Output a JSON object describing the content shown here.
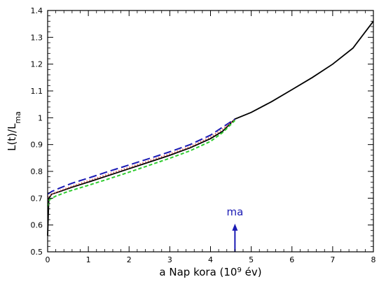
{
  "chart_data": {
    "type": "line",
    "xlabel": {
      "main": "a Nap kora (10",
      "sup": "9",
      "tail": " év)"
    },
    "ylabel": {
      "main": "L(t)/L",
      "sub": "ma"
    },
    "xlim": [
      0,
      8
    ],
    "ylim": [
      0.5,
      1.4
    ],
    "xticks": [
      0,
      1,
      2,
      3,
      4,
      5,
      6,
      7,
      8
    ],
    "yticks": [
      0.5,
      0.6,
      0.7,
      0.8,
      0.9,
      1.0,
      1.1,
      1.2,
      1.3,
      1.4
    ],
    "xtick_labels": [
      "0",
      "1",
      "2",
      "3",
      "4",
      "5",
      "6",
      "7",
      "8"
    ],
    "ytick_labels": [
      "0.5",
      "0.6",
      "0.7",
      "0.8",
      "0.9",
      "1",
      "1.1",
      "1.2",
      "1.3",
      "1.4"
    ],
    "grid": false,
    "series": [
      {
        "color": "#000000",
        "dash": "solid",
        "x": [
          0,
          0.03,
          0.1,
          0.3,
          0.6,
          1.0,
          1.5,
          2.0,
          2.5,
          3.0,
          3.5,
          4.0,
          4.3,
          4.6,
          5.0,
          5.5,
          6.0,
          6.5,
          7.0,
          7.5,
          8.0
        ],
        "y": [
          0.56,
          0.7,
          0.715,
          0.725,
          0.741,
          0.76,
          0.785,
          0.81,
          0.835,
          0.86,
          0.888,
          0.922,
          0.95,
          0.995,
          1.02,
          1.06,
          1.105,
          1.15,
          1.2,
          1.26,
          1.36
        ]
      },
      {
        "color": "#1a1ab4",
        "dash": "long-dash",
        "x": [
          0,
          0.1,
          0.3,
          0.6,
          1.0,
          1.5,
          2.0,
          2.5,
          3.0,
          3.5,
          4.0,
          4.3,
          4.6
        ],
        "y": [
          0.715,
          0.725,
          0.738,
          0.756,
          0.775,
          0.8,
          0.824,
          0.848,
          0.873,
          0.9,
          0.935,
          0.965,
          0.995
        ]
      },
      {
        "color": "#e06060",
        "dash": "dotted",
        "x": [
          0,
          0.1,
          0.3,
          0.6,
          1.0,
          1.5,
          2.0,
          2.5,
          3.0,
          3.5,
          4.0,
          4.3,
          4.6
        ],
        "y": [
          0.705,
          0.715,
          0.728,
          0.745,
          0.765,
          0.79,
          0.815,
          0.84,
          0.865,
          0.892,
          0.928,
          0.958,
          0.993
        ]
      },
      {
        "color": "#2ecc2e",
        "dash": "short-dash",
        "x": [
          0,
          0.05,
          0.2,
          0.5,
          1.0,
          1.5,
          2.0,
          2.5,
          3.0,
          3.5,
          4.0,
          4.3,
          4.6
        ],
        "y": [
          0.67,
          0.695,
          0.708,
          0.725,
          0.748,
          0.772,
          0.797,
          0.823,
          0.849,
          0.877,
          0.912,
          0.945,
          0.99
        ]
      }
    ],
    "annotation": {
      "text": "ma",
      "x": 4.6,
      "arrow_from_y": 0.5,
      "arrow_to_y": 0.605,
      "color": "#1a1ab4"
    }
  }
}
